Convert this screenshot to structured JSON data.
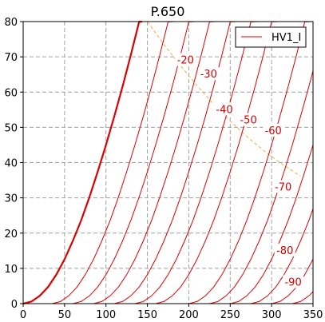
{
  "chart_data": {
    "type": "line",
    "title": "P.650",
    "xlabel": "",
    "ylabel": "",
    "xlim": [
      0,
      350
    ],
    "ylim": [
      0,
      80
    ],
    "x_ticks": [
      0,
      50,
      100,
      150,
      200,
      250,
      300,
      350
    ],
    "y_ticks": [
      0,
      10,
      20,
      30,
      40,
      50,
      60,
      70,
      80
    ],
    "grid": true,
    "legend": {
      "placement": "top-right",
      "entries": [
        "HV1_I"
      ]
    },
    "colors": {
      "series": "#dd0000",
      "boundary": "#e8b24a",
      "grid": "#a0a0a0"
    },
    "series": [
      {
        "name": "HV1_I",
        "line_style": "thick",
        "x": [
          0,
          10,
          20,
          30,
          40,
          50,
          60,
          70,
          80,
          90,
          100,
          110,
          120,
          130,
          140,
          143.6
        ],
        "y": [
          0,
          0.6,
          2.2,
          4.7,
          8.2,
          12.6,
          17.8,
          23.6,
          30.2,
          37.4,
          45.0,
          53.1,
          61.6,
          70.5,
          79.9,
          80
        ]
      }
    ],
    "contours": [
      {
        "label": "",
        "x": [
          35,
          45,
          55,
          65,
          75,
          85,
          95,
          105,
          115,
          125,
          135,
          145,
          155,
          165,
          175,
          183.9
        ],
        "y": [
          0,
          0.6,
          2.2,
          4.7,
          8.2,
          12.6,
          17.8,
          23.6,
          30.2,
          37.4,
          45.0,
          53.1,
          61.6,
          70.5,
          79.9,
          80
        ]
      },
      {
        "label": "-20",
        "label_pos": [
          196,
          69
        ],
        "x": [
          60,
          70,
          80,
          90,
          100,
          110,
          120,
          130,
          140,
          150,
          160,
          170,
          180,
          190,
          200,
          208.9
        ],
        "y": [
          0,
          0.6,
          2.2,
          4.7,
          8.2,
          12.6,
          17.8,
          23.6,
          30.2,
          37.4,
          45.0,
          53.1,
          61.6,
          70.5,
          79.9,
          80
        ]
      },
      {
        "label": "-30",
        "label_pos": [
          224,
          65
        ],
        "x": [
          85,
          95,
          105,
          115,
          125,
          135,
          145,
          155,
          165,
          175,
          185,
          195,
          205,
          215,
          225,
          233.9
        ],
        "y": [
          0,
          0.6,
          2.2,
          4.7,
          8.2,
          12.6,
          17.8,
          23.6,
          30.2,
          37.4,
          45.0,
          53.1,
          61.6,
          70.5,
          79.9,
          80
        ]
      },
      {
        "label": "-40",
        "label_pos": [
          243,
          55
        ],
        "x": [
          110,
          120,
          130,
          140,
          150,
          160,
          170,
          180,
          190,
          200,
          210,
          220,
          230,
          240,
          250,
          258.9
        ],
        "y": [
          0,
          0.6,
          2.2,
          4.7,
          8.2,
          12.6,
          17.8,
          23.6,
          30.2,
          37.4,
          45.0,
          53.1,
          61.6,
          70.5,
          79.9,
          80
        ]
      },
      {
        "label": "-50",
        "label_pos": [
          272,
          52
        ],
        "x": [
          135,
          145,
          155,
          165,
          175,
          185,
          195,
          205,
          215,
          225,
          235,
          245,
          255,
          265,
          275,
          283.9
        ],
        "y": [
          0,
          0.6,
          2.2,
          4.7,
          8.2,
          12.6,
          17.8,
          23.6,
          30.2,
          37.4,
          45.0,
          53.1,
          61.6,
          70.5,
          79.9,
          80
        ]
      },
      {
        "label": "-60",
        "label_pos": [
          302,
          49
        ],
        "x": [
          160,
          170,
          180,
          190,
          200,
          210,
          220,
          230,
          240,
          250,
          260,
          270,
          280,
          290,
          300,
          308.9
        ],
        "y": [
          0,
          0.6,
          2.2,
          4.7,
          8.2,
          12.6,
          17.8,
          23.6,
          30.2,
          37.4,
          45.0,
          53.1,
          61.6,
          70.5,
          79.9,
          80
        ]
      },
      {
        "label": "-70",
        "label_pos": [
          314,
          33
        ],
        "x": [
          200,
          210,
          220,
          230,
          240,
          250,
          260,
          270,
          280,
          290,
          300,
          310,
          320,
          330,
          340,
          348.9
        ],
        "y": [
          0,
          0.6,
          2.2,
          4.7,
          8.2,
          12.6,
          17.8,
          23.6,
          30.2,
          37.4,
          45.0,
          53.1,
          61.6,
          70.5,
          79.9,
          80
        ]
      },
      {
        "label": "",
        "x": [
          225,
          235,
          245,
          255,
          265,
          275,
          285,
          295,
          305,
          315,
          325,
          335,
          345,
          350
        ],
        "y": [
          0,
          0.6,
          2.2,
          4.7,
          8.2,
          12.6,
          17.8,
          23.6,
          30.2,
          37.4,
          45.0,
          53.1,
          61.6,
          66.0
        ]
      },
      {
        "label": "",
        "x": [
          250,
          260,
          270,
          280,
          290,
          300,
          310,
          320,
          330,
          340,
          350
        ],
        "y": [
          0,
          0.6,
          2.2,
          4.7,
          8.2,
          12.6,
          17.8,
          23.6,
          30.2,
          37.4,
          45.0
        ]
      },
      {
        "label": "-80",
        "label_pos": [
          316,
          15
        ],
        "x": [
          275,
          285,
          295,
          305,
          315,
          325,
          335,
          345,
          350
        ],
        "y": [
          0,
          0.6,
          2.2,
          4.7,
          8.2,
          12.6,
          17.8,
          23.6,
          26.9
        ]
      },
      {
        "label": "-90",
        "label_pos": [
          326,
          6
        ],
        "x": [
          300,
          310,
          320,
          330,
          340,
          350
        ],
        "y": [
          0,
          0.6,
          2.2,
          4.7,
          8.2,
          12.6
        ]
      },
      {
        "label": "",
        "x": [
          325,
          335,
          345,
          350
        ],
        "y": [
          0,
          0.6,
          2.2,
          3.4
        ]
      }
    ],
    "boundary": {
      "style": "dashed",
      "x": [
        150,
        170,
        190,
        210,
        230,
        250,
        270,
        290,
        310,
        330,
        335
      ],
      "y": [
        80,
        73.5,
        67.5,
        61.8,
        56.6,
        51.8,
        47.4,
        43.5,
        40.0,
        36.9,
        36.2
      ]
    }
  }
}
